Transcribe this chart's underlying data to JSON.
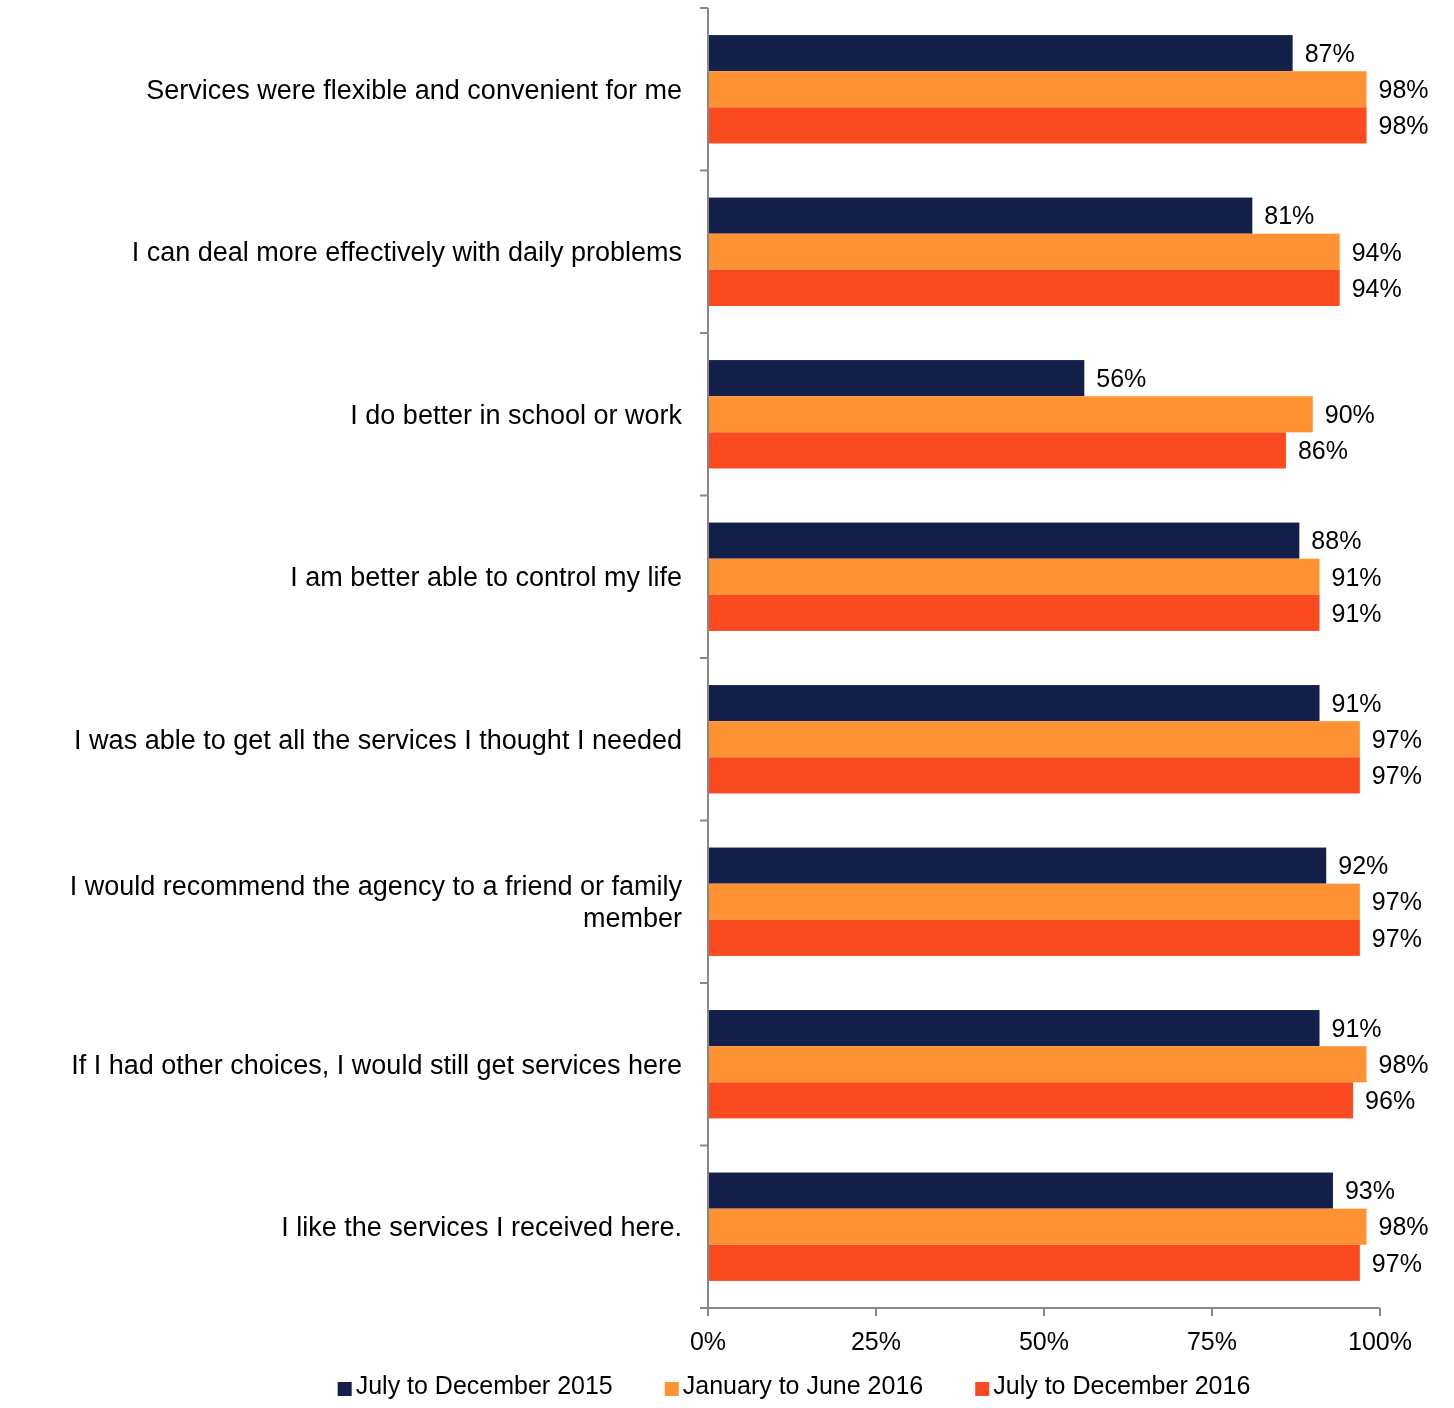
{
  "chart_data": {
    "type": "bar",
    "orientation": "horizontal",
    "categories": [
      "Services were flexible and convenient for me",
      "I can deal more effectively with daily problems",
      "I do better in school or work",
      "I am better able to control my life",
      "I was able to get all the services I thought I needed",
      "I would recommend the agency to a friend or family member",
      "If I had other choices, I would still get services here",
      "I like the services I received here."
    ],
    "series": [
      {
        "name": "July to December 2015",
        "color": "#14204a",
        "values": [
          87,
          81,
          56,
          88,
          91,
          92,
          91,
          93
        ],
        "value_labels": [
          "87%",
          "81%",
          "56%",
          "88%",
          "91%",
          "92%",
          "91%",
          "93%"
        ]
      },
      {
        "name": "January to June 2016",
        "color": "#ff9232",
        "values": [
          98,
          94,
          90,
          91,
          97,
          97,
          98,
          98
        ],
        "value_labels": [
          "98%",
          "94%",
          "90%",
          "91%",
          "97%",
          "97%",
          "98%",
          "98%"
        ]
      },
      {
        "name": "July to December 2016",
        "color": "#fa4a1f",
        "values": [
          98,
          94,
          86,
          91,
          97,
          97,
          96,
          97
        ],
        "value_labels": [
          "98%",
          "94%",
          "86%",
          "91%",
          "97%",
          "97%",
          "96%",
          "97%"
        ]
      }
    ],
    "xlim": [
      0,
      100
    ],
    "xticks": [
      {
        "value": 0,
        "label": "0%"
      },
      {
        "value": 25,
        "label": "25%"
      },
      {
        "value": 50,
        "label": "50%"
      },
      {
        "value": 75,
        "label": "75%"
      },
      {
        "value": 100,
        "label": "100%"
      }
    ],
    "grid": false,
    "legend": "bottom"
  }
}
